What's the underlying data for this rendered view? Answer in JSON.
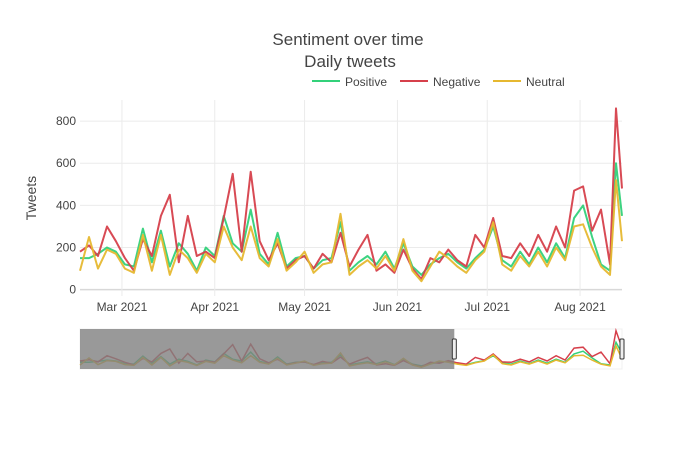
{
  "chart_data": {
    "type": "line",
    "title": "Sentiment over time",
    "subtitle": "Daily tweets",
    "xlabel": "",
    "ylabel": "Tweets",
    "xlim": [
      "2021-02-15",
      "2021-08-15"
    ],
    "ylim": [
      -30,
      900
    ],
    "yticks": [
      0,
      200,
      400,
      600,
      800
    ],
    "xticks": [
      {
        "date": "2021-03-01",
        "label": "Mar 2021"
      },
      {
        "date": "2021-04-01",
        "label": "Apr 2021"
      },
      {
        "date": "2021-05-01",
        "label": "May 2021"
      },
      {
        "date": "2021-06-01",
        "label": "Jun 2021"
      },
      {
        "date": "2021-07-01",
        "label": "Jul 2021"
      },
      {
        "date": "2021-08-01",
        "label": "Aug 2021"
      }
    ],
    "grid": true,
    "legend_position": "top-right",
    "range_slider": {
      "selected_from": "2021-02-15",
      "selected_to": "2021-06-20"
    },
    "series": [
      {
        "name": "Positive",
        "color": "#33d17a",
        "points": [
          [
            "2021-02-15",
            150
          ],
          [
            "2021-02-18",
            150
          ],
          [
            "2021-02-21",
            170
          ],
          [
            "2021-02-24",
            200
          ],
          [
            "2021-02-27",
            180
          ],
          [
            "2021-03-02",
            120
          ],
          [
            "2021-03-05",
            110
          ],
          [
            "2021-03-08",
            290
          ],
          [
            "2021-03-11",
            130
          ],
          [
            "2021-03-14",
            280
          ],
          [
            "2021-03-17",
            110
          ],
          [
            "2021-03-20",
            220
          ],
          [
            "2021-03-23",
            170
          ],
          [
            "2021-03-26",
            90
          ],
          [
            "2021-03-29",
            200
          ],
          [
            "2021-04-01",
            160
          ],
          [
            "2021-04-04",
            350
          ],
          [
            "2021-04-07",
            220
          ],
          [
            "2021-04-10",
            180
          ],
          [
            "2021-04-13",
            380
          ],
          [
            "2021-04-16",
            170
          ],
          [
            "2021-04-19",
            120
          ],
          [
            "2021-04-22",
            270
          ],
          [
            "2021-04-25",
            110
          ],
          [
            "2021-04-28",
            150
          ],
          [
            "2021-05-01",
            160
          ],
          [
            "2021-05-04",
            100
          ],
          [
            "2021-05-07",
            140
          ],
          [
            "2021-05-10",
            150
          ],
          [
            "2021-05-13",
            320
          ],
          [
            "2021-05-16",
            90
          ],
          [
            "2021-05-19",
            130
          ],
          [
            "2021-05-22",
            160
          ],
          [
            "2021-05-25",
            120
          ],
          [
            "2021-05-28",
            180
          ],
          [
            "2021-05-31",
            100
          ],
          [
            "2021-06-03",
            220
          ],
          [
            "2021-06-06",
            110
          ],
          [
            "2021-06-09",
            70
          ],
          [
            "2021-06-12",
            120
          ],
          [
            "2021-06-15",
            150
          ],
          [
            "2021-06-18",
            170
          ],
          [
            "2021-06-21",
            130
          ],
          [
            "2021-06-24",
            100
          ],
          [
            "2021-06-27",
            150
          ],
          [
            "2021-06-30",
            190
          ],
          [
            "2021-07-03",
            300
          ],
          [
            "2021-07-06",
            140
          ],
          [
            "2021-07-09",
            110
          ],
          [
            "2021-07-12",
            180
          ],
          [
            "2021-07-15",
            120
          ],
          [
            "2021-07-18",
            200
          ],
          [
            "2021-07-21",
            130
          ],
          [
            "2021-07-24",
            220
          ],
          [
            "2021-07-27",
            150
          ],
          [
            "2021-07-30",
            340
          ],
          [
            "2021-08-02",
            400
          ],
          [
            "2021-08-05",
            250
          ],
          [
            "2021-08-08",
            120
          ],
          [
            "2021-08-11",
            90
          ],
          [
            "2021-08-13",
            600
          ],
          [
            "2021-08-15",
            350
          ]
        ]
      },
      {
        "name": "Negative",
        "color": "#d6404b",
        "points": [
          [
            "2021-02-15",
            180
          ],
          [
            "2021-02-18",
            210
          ],
          [
            "2021-02-21",
            160
          ],
          [
            "2021-02-24",
            300
          ],
          [
            "2021-02-27",
            230
          ],
          [
            "2021-03-02",
            150
          ],
          [
            "2021-03-05",
            90
          ],
          [
            "2021-03-08",
            240
          ],
          [
            "2021-03-11",
            160
          ],
          [
            "2021-03-14",
            350
          ],
          [
            "2021-03-17",
            450
          ],
          [
            "2021-03-20",
            130
          ],
          [
            "2021-03-23",
            350
          ],
          [
            "2021-03-26",
            160
          ],
          [
            "2021-03-29",
            180
          ],
          [
            "2021-04-01",
            150
          ],
          [
            "2021-04-04",
            340
          ],
          [
            "2021-04-07",
            550
          ],
          [
            "2021-04-10",
            180
          ],
          [
            "2021-04-13",
            560
          ],
          [
            "2021-04-16",
            230
          ],
          [
            "2021-04-19",
            140
          ],
          [
            "2021-04-22",
            220
          ],
          [
            "2021-04-25",
            100
          ],
          [
            "2021-04-28",
            140
          ],
          [
            "2021-05-01",
            160
          ],
          [
            "2021-05-04",
            100
          ],
          [
            "2021-05-07",
            170
          ],
          [
            "2021-05-10",
            130
          ],
          [
            "2021-05-13",
            270
          ],
          [
            "2021-05-16",
            110
          ],
          [
            "2021-05-19",
            190
          ],
          [
            "2021-05-22",
            260
          ],
          [
            "2021-05-25",
            90
          ],
          [
            "2021-05-28",
            120
          ],
          [
            "2021-05-31",
            80
          ],
          [
            "2021-06-03",
            190
          ],
          [
            "2021-06-06",
            100
          ],
          [
            "2021-06-09",
            50
          ],
          [
            "2021-06-12",
            150
          ],
          [
            "2021-06-15",
            130
          ],
          [
            "2021-06-18",
            190
          ],
          [
            "2021-06-21",
            140
          ],
          [
            "2021-06-24",
            110
          ],
          [
            "2021-06-27",
            260
          ],
          [
            "2021-06-30",
            200
          ],
          [
            "2021-07-03",
            340
          ],
          [
            "2021-07-06",
            160
          ],
          [
            "2021-07-09",
            150
          ],
          [
            "2021-07-12",
            220
          ],
          [
            "2021-07-15",
            160
          ],
          [
            "2021-07-18",
            260
          ],
          [
            "2021-07-21",
            180
          ],
          [
            "2021-07-24",
            300
          ],
          [
            "2021-07-27",
            200
          ],
          [
            "2021-07-30",
            470
          ],
          [
            "2021-08-02",
            490
          ],
          [
            "2021-08-05",
            280
          ],
          [
            "2021-08-08",
            380
          ],
          [
            "2021-08-11",
            120
          ],
          [
            "2021-08-13",
            860
          ],
          [
            "2021-08-15",
            480
          ]
        ]
      },
      {
        "name": "Neutral",
        "color": "#e6b830",
        "points": [
          [
            "2021-02-15",
            90
          ],
          [
            "2021-02-18",
            250
          ],
          [
            "2021-02-21",
            100
          ],
          [
            "2021-02-24",
            190
          ],
          [
            "2021-02-27",
            170
          ],
          [
            "2021-03-02",
            100
          ],
          [
            "2021-03-05",
            80
          ],
          [
            "2021-03-08",
            260
          ],
          [
            "2021-03-11",
            90
          ],
          [
            "2021-03-14",
            260
          ],
          [
            "2021-03-17",
            70
          ],
          [
            "2021-03-20",
            190
          ],
          [
            "2021-03-23",
            150
          ],
          [
            "2021-03-26",
            80
          ],
          [
            "2021-03-29",
            170
          ],
          [
            "2021-04-01",
            130
          ],
          [
            "2021-04-04",
            300
          ],
          [
            "2021-04-07",
            200
          ],
          [
            "2021-04-10",
            140
          ],
          [
            "2021-04-13",
            300
          ],
          [
            "2021-04-16",
            150
          ],
          [
            "2021-04-19",
            110
          ],
          [
            "2021-04-22",
            240
          ],
          [
            "2021-04-25",
            90
          ],
          [
            "2021-04-28",
            130
          ],
          [
            "2021-05-01",
            180
          ],
          [
            "2021-05-04",
            80
          ],
          [
            "2021-05-07",
            120
          ],
          [
            "2021-05-10",
            130
          ],
          [
            "2021-05-13",
            360
          ],
          [
            "2021-05-16",
            70
          ],
          [
            "2021-05-19",
            110
          ],
          [
            "2021-05-22",
            140
          ],
          [
            "2021-05-25",
            100
          ],
          [
            "2021-05-28",
            160
          ],
          [
            "2021-05-31",
            90
          ],
          [
            "2021-06-03",
            240
          ],
          [
            "2021-06-06",
            90
          ],
          [
            "2021-06-09",
            40
          ],
          [
            "2021-06-12",
            110
          ],
          [
            "2021-06-15",
            180
          ],
          [
            "2021-06-18",
            150
          ],
          [
            "2021-06-21",
            110
          ],
          [
            "2021-06-24",
            80
          ],
          [
            "2021-06-27",
            140
          ],
          [
            "2021-06-30",
            180
          ],
          [
            "2021-07-03",
            320
          ],
          [
            "2021-07-06",
            120
          ],
          [
            "2021-07-09",
            90
          ],
          [
            "2021-07-12",
            160
          ],
          [
            "2021-07-15",
            110
          ],
          [
            "2021-07-18",
            180
          ],
          [
            "2021-07-21",
            110
          ],
          [
            "2021-07-24",
            200
          ],
          [
            "2021-07-27",
            140
          ],
          [
            "2021-07-30",
            300
          ],
          [
            "2021-08-02",
            310
          ],
          [
            "2021-08-05",
            200
          ],
          [
            "2021-08-08",
            110
          ],
          [
            "2021-08-11",
            70
          ],
          [
            "2021-08-13",
            520
          ],
          [
            "2021-08-15",
            230
          ]
        ]
      }
    ]
  }
}
